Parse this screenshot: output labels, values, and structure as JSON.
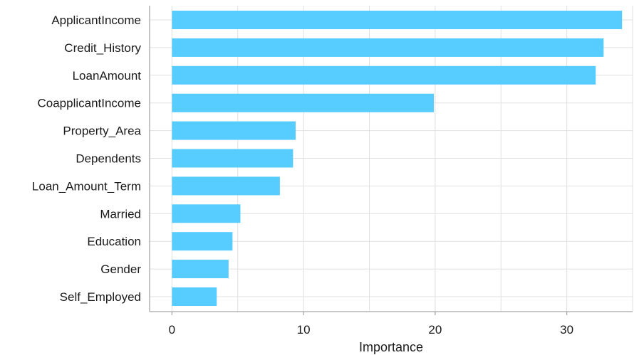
{
  "chart_data": {
    "type": "bar",
    "orientation": "horizontal",
    "title": "",
    "xlabel": "Importance",
    "ylabel": "",
    "categories": [
      "ApplicantIncome",
      "Credit_History",
      "LoanAmount",
      "CoapplicantIncome",
      "Property_Area",
      "Dependents",
      "Loan_Amount_Term",
      "Married",
      "Education",
      "Gender",
      "Self_Employed"
    ],
    "values": [
      34.2,
      32.8,
      32.2,
      19.9,
      9.4,
      9.2,
      8.2,
      5.2,
      4.6,
      4.3,
      3.4
    ],
    "xlim": [
      -1.7,
      35
    ],
    "xticks": [
      0,
      10,
      20,
      30
    ],
    "xtick_labels": [
      "0",
      "10",
      "20",
      "30"
    ],
    "grid": true,
    "bar_color": "#56CCFF",
    "grid_color": "#E0E0E0",
    "axis_color": "#A8A8A8"
  }
}
